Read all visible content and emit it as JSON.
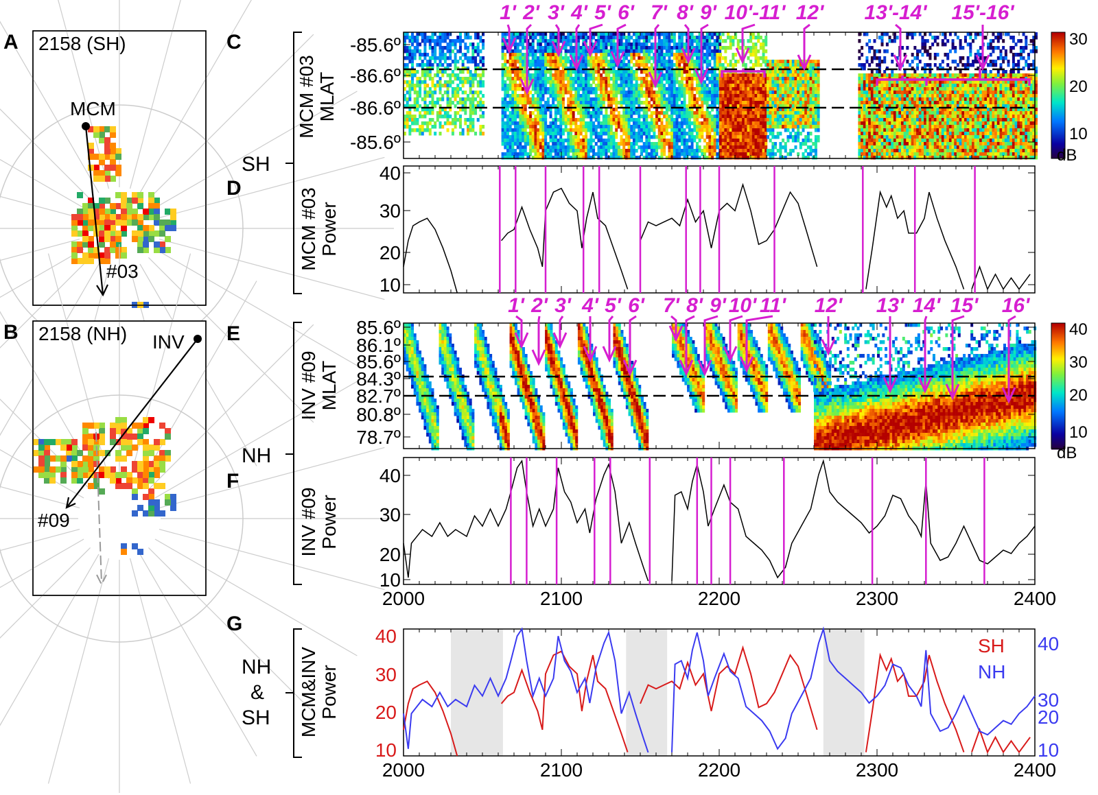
{
  "panel_letters": {
    "a": "A",
    "b": "B",
    "c": "C",
    "d": "D",
    "e": "E",
    "f": "F",
    "g": "G"
  },
  "maps": {
    "a": {
      "title": "2158 (SH)",
      "station": "MCM",
      "beam": "#03"
    },
    "b": {
      "title": "2158 (NH)",
      "station": "INV",
      "beam": "#09"
    }
  },
  "side_labels": {
    "sh": "SH",
    "nh": "NH",
    "nh_sh": [
      "NH",
      "&",
      "SH"
    ]
  },
  "colors": {
    "marker": "#d61ed0",
    "sh": "#d81a1a",
    "nh": "#3a3af0",
    "shade": "#e6e6e6"
  },
  "chart_data": [
    {
      "panel": "C",
      "type": "heatmap",
      "ylabel": [
        "MCM #03",
        "MLAT"
      ],
      "yticks": [
        "-85.6º",
        "-86.6º",
        "-86.6º",
        "-85.6º"
      ],
      "colorbar": {
        "ticks": [
          "30",
          "20",
          "10"
        ],
        "unit": "dB",
        "range": [
          5,
          30
        ]
      },
      "events": [
        "1'",
        "2'",
        "3'",
        "4'",
        "5'",
        "6'",
        "7'",
        "8'",
        "9'",
        "10'-11'",
        "12'",
        "13'-14'",
        "15'-16'"
      ]
    },
    {
      "panel": "D",
      "type": "line",
      "ylabel": [
        "MCM #03",
        "Power"
      ],
      "yticks": [
        "40",
        "30",
        "20",
        "10"
      ],
      "ylim": [
        8,
        42
      ],
      "xlim": [
        2000,
        2400
      ],
      "markers": [
        2061,
        2071,
        2090,
        2114,
        2124,
        2150,
        2179,
        2188,
        2200,
        2235,
        2291,
        2324,
        2362
      ],
      "series": [
        {
          "name": "SH",
          "points": [
            [
              2000,
              15
            ],
            [
              2003,
              22
            ],
            [
              2006,
              26
            ],
            [
              2010,
              27
            ],
            [
              2015,
              28
            ],
            [
              2020,
              25
            ],
            [
              2025,
              20
            ],
            [
              2030,
              14
            ],
            [
              2034,
              8
            ],
            null,
            [
              2062,
              22
            ],
            [
              2066,
              24
            ],
            [
              2070,
              25
            ],
            [
              2075,
              31
            ],
            [
              2080,
              25
            ],
            [
              2085,
              20
            ],
            [
              2088,
              15
            ],
            [
              2090,
              30
            ],
            [
              2095,
              35
            ],
            [
              2100,
              36
            ],
            [
              2105,
              32
            ],
            [
              2110,
              30
            ],
            [
              2113,
              20
            ],
            [
              2116,
              28
            ],
            [
              2120,
              35
            ],
            [
              2123,
              28
            ],
            [
              2128,
              26
            ],
            [
              2133,
              20
            ],
            [
              2138,
              14
            ],
            [
              2142,
              9
            ],
            null,
            [
              2150,
              22
            ],
            [
              2155,
              27
            ],
            [
              2160,
              26
            ],
            [
              2165,
              27
            ],
            [
              2170,
              28
            ],
            [
              2175,
              26
            ],
            [
              2180,
              33
            ],
            [
              2185,
              27
            ],
            [
              2190,
              30
            ],
            [
              2195,
              20
            ],
            [
              2200,
              30
            ],
            [
              2205,
              32
            ],
            [
              2210,
              30
            ],
            [
              2215,
              37
            ],
            [
              2220,
              30
            ],
            [
              2225,
              21
            ],
            [
              2230,
              22
            ],
            [
              2235,
              25
            ],
            [
              2240,
              30
            ],
            [
              2245,
              35
            ],
            [
              2250,
              32
            ],
            [
              2255,
              25
            ],
            [
              2262,
              15
            ],
            null,
            [
              2293,
              9
            ],
            [
              2297,
              20
            ],
            [
              2302,
              35
            ],
            [
              2306,
              31
            ],
            [
              2309,
              34
            ],
            [
              2313,
              28
            ],
            [
              2317,
              30
            ],
            [
              2320,
              24
            ],
            [
              2325,
              24
            ],
            [
              2330,
              28
            ],
            [
              2333,
              35
            ],
            [
              2338,
              28
            ],
            [
              2343,
              22
            ],
            [
              2350,
              15
            ],
            [
              2355,
              9
            ],
            null,
            [
              2360,
              9
            ],
            [
              2365,
              15
            ],
            [
              2370,
              9
            ],
            [
              2375,
              13
            ],
            [
              2380,
              9
            ],
            [
              2385,
              12
            ],
            [
              2390,
              9
            ],
            [
              2397,
              13
            ]
          ]
        }
      ]
    },
    {
      "panel": "E",
      "type": "heatmap",
      "ylabel": [
        "INV #09",
        "MLAT"
      ],
      "yticks": [
        "85.6º",
        "86.1º",
        "85.6º",
        "84.3º",
        "82.7º",
        "80.8º",
        "78.7º"
      ],
      "colorbar": {
        "ticks": [
          "40",
          "30",
          "20",
          "10"
        ],
        "unit": "dB",
        "range": [
          5,
          40
        ]
      },
      "events": [
        "1'",
        "2'",
        "3'",
        "4'",
        "5'",
        "6'",
        "7'",
        "8'",
        "9'",
        "10'",
        "11'",
        "12'",
        "13'",
        "14'",
        "15'",
        "16'"
      ]
    },
    {
      "panel": "F",
      "type": "line",
      "ylabel": [
        "INV #09",
        "Power"
      ],
      "yticks": [
        "40",
        "30",
        "20",
        "10"
      ],
      "ylim": [
        8,
        45
      ],
      "xlim": [
        2000,
        2400
      ],
      "xticks": [
        "2000",
        "2100",
        "2200",
        "2300",
        "2400"
      ],
      "markers": [
        2068,
        2078,
        2097,
        2121,
        2131,
        2156,
        2186,
        2195,
        2207,
        2241,
        2297,
        2331,
        2368
      ],
      "series": [
        {
          "name": "NH",
          "points": [
            [
              2000,
              20
            ],
            [
              2003,
              10
            ],
            [
              2005,
              20
            ],
            [
              2012,
              24
            ],
            [
              2018,
              22
            ],
            [
              2023,
              26
            ],
            [
              2028,
              22
            ],
            [
              2033,
              24
            ],
            [
              2040,
              22
            ],
            [
              2045,
              28
            ],
            [
              2050,
              25
            ],
            [
              2055,
              30
            ],
            [
              2060,
              25
            ],
            [
              2065,
              30
            ],
            [
              2068,
              35
            ],
            [
              2072,
              42
            ],
            [
              2075,
              44
            ],
            [
              2078,
              35
            ],
            [
              2082,
              25
            ],
            [
              2086,
              30
            ],
            [
              2090,
              25
            ],
            [
              2095,
              30
            ],
            [
              2098,
              42
            ],
            [
              2102,
              35
            ],
            [
              2106,
              32
            ],
            [
              2110,
              26
            ],
            [
              2115,
              30
            ],
            [
              2118,
              23
            ],
            [
              2122,
              33
            ],
            [
              2127,
              40
            ],
            [
              2130,
              43
            ],
            [
              2134,
              35
            ],
            [
              2138,
              20
            ],
            [
              2143,
              26
            ],
            [
              2147,
              20
            ],
            [
              2152,
              13
            ],
            [
              2155,
              9
            ],
            null,
            [
              2170,
              9
            ],
            [
              2172,
              34
            ],
            [
              2176,
              35
            ],
            [
              2180,
              30
            ],
            [
              2183,
              38
            ],
            [
              2186,
              43
            ],
            [
              2190,
              35
            ],
            [
              2193,
              25
            ],
            [
              2197,
              30
            ],
            [
              2203,
              37
            ],
            [
              2207,
              32
            ],
            [
              2212,
              30
            ],
            [
              2217,
              22
            ],
            [
              2222,
              20
            ],
            [
              2227,
              18
            ],
            [
              2232,
              15
            ],
            [
              2237,
              10
            ],
            [
              2242,
              13
            ],
            [
              2246,
              20
            ],
            [
              2252,
              25
            ],
            [
              2258,
              30
            ],
            [
              2263,
              40
            ],
            [
              2266,
              44
            ],
            [
              2270,
              35
            ],
            [
              2275,
              32
            ],
            [
              2280,
              30
            ],
            [
              2285,
              28
            ],
            [
              2290,
              26
            ],
            [
              2295,
              23
            ],
            [
              2300,
              25
            ],
            [
              2305,
              28
            ],
            [
              2310,
              34
            ],
            [
              2315,
              33
            ],
            [
              2320,
              28
            ],
            [
              2325,
              25
            ],
            [
              2328,
              22
            ],
            [
              2331,
              38
            ],
            [
              2334,
              20
            ],
            [
              2340,
              15
            ],
            [
              2345,
              16
            ],
            [
              2350,
              20
            ],
            [
              2355,
              25
            ],
            [
              2360,
              20
            ],
            [
              2365,
              15
            ],
            [
              2370,
              14
            ],
            [
              2375,
              16
            ],
            [
              2380,
              18
            ],
            [
              2385,
              17
            ],
            [
              2390,
              20
            ],
            [
              2395,
              22
            ],
            [
              2400,
              25
            ]
          ]
        }
      ]
    },
    {
      "panel": "G",
      "type": "line",
      "ylabel": [
        "MCM&INV",
        "Power"
      ],
      "yticks_left": [
        "40",
        "30",
        "20",
        "10"
      ],
      "yticks_right": [
        "40",
        "30",
        "20",
        "10"
      ],
      "ylim": [
        8,
        42
      ],
      "xlim": [
        2000,
        2400
      ],
      "xticks": [
        "2000",
        "2100",
        "2200",
        "2300",
        "2400"
      ],
      "legend": [
        "SH",
        "NH"
      ],
      "legend_position": "top-right",
      "shaded_intervals": [
        [
          2030,
          2063
        ],
        [
          2141,
          2167
        ],
        [
          2266,
          2292
        ]
      ]
    }
  ]
}
